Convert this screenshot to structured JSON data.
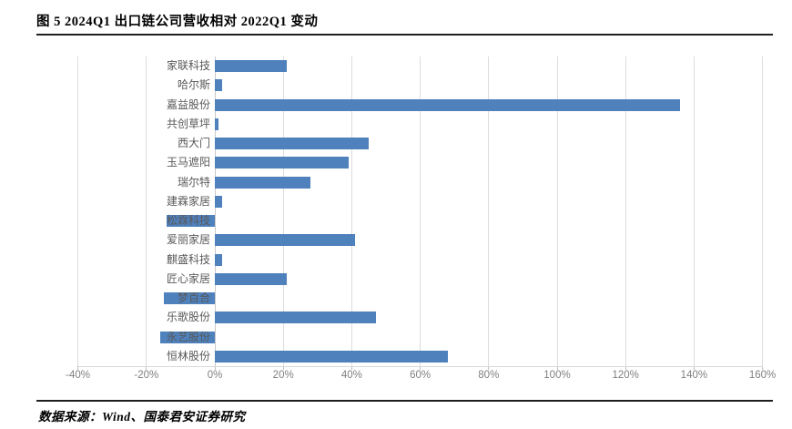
{
  "figure": {
    "title": "图 5 2024Q1 出口链公司营收相对 2022Q1 变动",
    "source": "数据来源：Wind、国泰君安证券研究"
  },
  "chart_data": {
    "type": "bar",
    "orientation": "horizontal",
    "title": "2024Q1 出口链公司营收相对 2022Q1 变动",
    "categories": [
      "家联科技",
      "哈尔斯",
      "嘉益股份",
      "共创草坪",
      "西大门",
      "玉马遮阳",
      "瑞尔特",
      "建霖家居",
      "松霖科技",
      "爱丽家居",
      "麒盛科技",
      "匠心家居",
      "梦百合",
      "乐歌股份",
      "永艺股份",
      "恒林股份"
    ],
    "values": [
      21,
      2,
      136,
      1,
      45,
      39,
      28,
      2,
      -14,
      41,
      2,
      21,
      -15,
      47,
      -16,
      68
    ],
    "unit": "%",
    "xlabel": "",
    "ylabel": "",
    "xlim": [
      -40,
      160
    ],
    "xtick_values": [
      -40,
      -20,
      0,
      20,
      40,
      60,
      80,
      100,
      120,
      140,
      160
    ],
    "xtick_labels": [
      "-40%",
      "-20%",
      "0%",
      "20%",
      "40%",
      "60%",
      "80%",
      "100%",
      "120%",
      "140%",
      "160%"
    ],
    "grid": "vertical-gridlines-on",
    "legend": "none",
    "bar_color": "#4f81bd",
    "gridline_color": "#dcdcdc",
    "axis_label_color": "#808080",
    "category_label_color": "#595959"
  }
}
